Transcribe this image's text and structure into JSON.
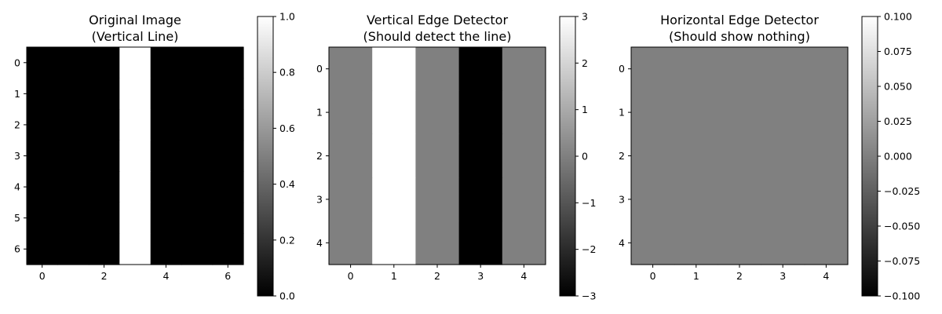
{
  "chart_data": [
    {
      "type": "heatmap",
      "title": "Original Image\n(Vertical Line)",
      "colormap": "gray",
      "rows": 7,
      "cols": 7,
      "values": [
        [
          0,
          0,
          0,
          1,
          0,
          0,
          0
        ],
        [
          0,
          0,
          0,
          1,
          0,
          0,
          0
        ],
        [
          0,
          0,
          0,
          1,
          0,
          0,
          0
        ],
        [
          0,
          0,
          0,
          1,
          0,
          0,
          0
        ],
        [
          0,
          0,
          0,
          1,
          0,
          0,
          0
        ],
        [
          0,
          0,
          0,
          1,
          0,
          0,
          0
        ],
        [
          0,
          0,
          0,
          1,
          0,
          0,
          0
        ]
      ],
      "x_ticks": [
        "0",
        "2",
        "4",
        "6"
      ],
      "x_tick_values": [
        0,
        2,
        4,
        6
      ],
      "y_ticks": [
        "0",
        "1",
        "2",
        "3",
        "4",
        "5",
        "6"
      ],
      "y_tick_values": [
        0,
        1,
        2,
        3,
        4,
        5,
        6
      ],
      "clim": [
        0,
        1
      ],
      "colorbar_ticks": [
        "0.0",
        "0.2",
        "0.4",
        "0.6",
        "0.8",
        "1.0"
      ],
      "colorbar_tick_values": [
        0,
        0.2,
        0.4,
        0.6,
        0.8,
        1.0
      ]
    },
    {
      "type": "heatmap",
      "title": "Vertical Edge Detector\n(Should detect the line)",
      "colormap": "gray",
      "rows": 5,
      "cols": 5,
      "values": [
        [
          0,
          3,
          0,
          -3,
          0
        ],
        [
          0,
          3,
          0,
          -3,
          0
        ],
        [
          0,
          3,
          0,
          -3,
          0
        ],
        [
          0,
          3,
          0,
          -3,
          0
        ],
        [
          0,
          3,
          0,
          -3,
          0
        ]
      ],
      "x_ticks": [
        "0",
        "1",
        "2",
        "3",
        "4"
      ],
      "x_tick_values": [
        0,
        1,
        2,
        3,
        4
      ],
      "y_ticks": [
        "0",
        "1",
        "2",
        "3",
        "4"
      ],
      "y_tick_values": [
        0,
        1,
        2,
        3,
        4
      ],
      "clim": [
        -3,
        3
      ],
      "colorbar_ticks": [
        "−3",
        "−2",
        "−1",
        "0",
        "1",
        "2",
        "3"
      ],
      "colorbar_tick_values": [
        -3,
        -2,
        -1,
        0,
        1,
        2,
        3
      ]
    },
    {
      "type": "heatmap",
      "title": "Horizontal Edge Detector\n(Should show nothing)",
      "colormap": "gray",
      "rows": 5,
      "cols": 5,
      "values": [
        [
          0,
          0,
          0,
          0,
          0
        ],
        [
          0,
          0,
          0,
          0,
          0
        ],
        [
          0,
          0,
          0,
          0,
          0
        ],
        [
          0,
          0,
          0,
          0,
          0
        ],
        [
          0,
          0,
          0,
          0,
          0
        ]
      ],
      "x_ticks": [
        "0",
        "1",
        "2",
        "3",
        "4"
      ],
      "x_tick_values": [
        0,
        1,
        2,
        3,
        4
      ],
      "y_ticks": [
        "0",
        "1",
        "2",
        "3",
        "4"
      ],
      "y_tick_values": [
        0,
        1,
        2,
        3,
        4
      ],
      "clim": [
        -0.1,
        0.1
      ],
      "colorbar_ticks": [
        "−0.100",
        "−0.075",
        "−0.050",
        "−0.025",
        "0.000",
        "0.025",
        "0.050",
        "0.075",
        "0.100"
      ],
      "colorbar_tick_values": [
        -0.1,
        -0.075,
        -0.05,
        -0.025,
        0,
        0.025,
        0.05,
        0.075,
        0.1
      ]
    }
  ]
}
